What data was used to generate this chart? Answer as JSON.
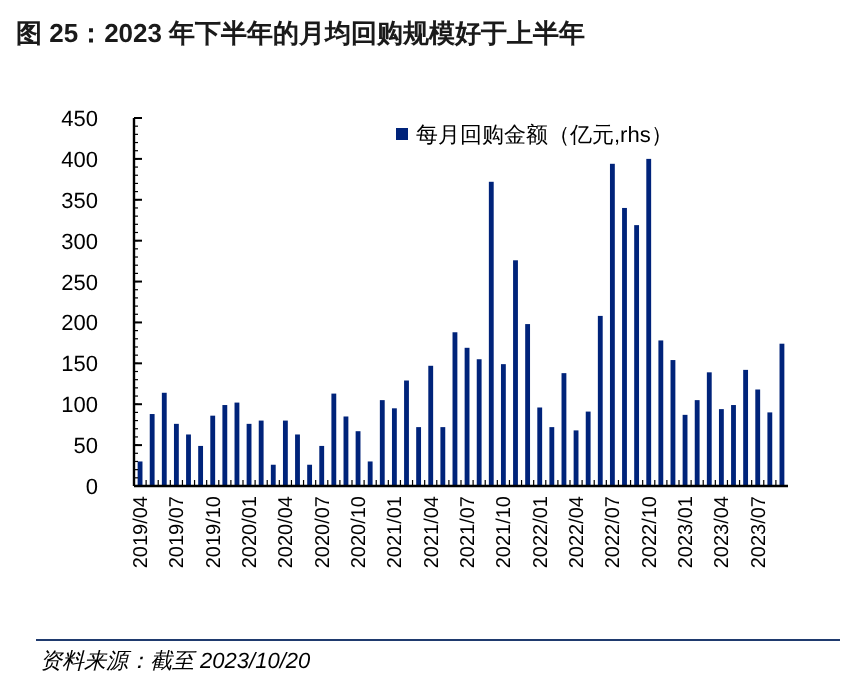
{
  "chart_data": {
    "type": "bar",
    "title": "图 25：2023 年下半年的月均回购规模好于上半年",
    "categories": [
      "2019/04",
      null,
      null,
      "2019/07",
      null,
      null,
      "2019/10",
      null,
      null,
      "2020/01",
      null,
      null,
      "2020/04",
      null,
      null,
      "2020/07",
      null,
      null,
      "2020/10",
      null,
      null,
      "2021/01",
      null,
      null,
      "2021/04",
      null,
      null,
      "2021/07",
      null,
      null,
      "2021/10",
      null,
      null,
      "2022/01",
      null,
      null,
      "2022/04",
      null,
      null,
      "2022/07",
      null,
      null,
      "2022/10",
      null,
      null,
      "2023/01",
      null,
      null,
      "2023/04",
      null,
      null,
      "2023/07",
      null,
      null
    ],
    "series": [
      {
        "name": "每月回购金额（亿元,rhs）",
        "color": "#00237a",
        "values": [
          30,
          88,
          114,
          76,
          63,
          49,
          86,
          99,
          102,
          76,
          80,
          26,
          80,
          63,
          26,
          49,
          113,
          85,
          67,
          30,
          105,
          95,
          129,
          72,
          147,
          72,
          188,
          169,
          155,
          372,
          149,
          276,
          198,
          96,
          72,
          138,
          68,
          91,
          208,
          394,
          340,
          319,
          400,
          178,
          154,
          87,
          105,
          139,
          94,
          99,
          142,
          118,
          90,
          174
        ]
      }
    ],
    "ylim": [
      0,
      450
    ],
    "yticks": [
      0,
      50,
      100,
      150,
      200,
      250,
      300,
      350,
      400,
      450
    ],
    "grid": false,
    "legend": "top right",
    "annotations": [
      "资料来源：截至 2023/10/20"
    ]
  }
}
